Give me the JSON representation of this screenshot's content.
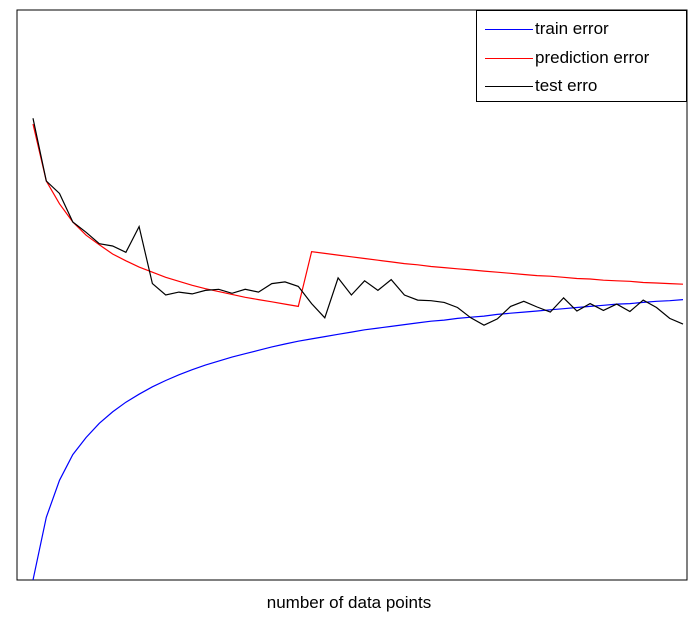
{
  "chart_data": {
    "type": "line",
    "title": "",
    "xlabel": "number of data points",
    "ylabel": "",
    "x_ticks": [],
    "y_ticks": [],
    "grid": false,
    "legend_position": "top-right",
    "xlim": [
      1,
      50
    ],
    "ylim": [
      0,
      1
    ],
    "x": [
      1,
      2,
      3,
      4,
      5,
      6,
      7,
      8,
      9,
      10,
      11,
      12,
      13,
      14,
      15,
      16,
      17,
      18,
      19,
      20,
      21,
      22,
      23,
      24,
      25,
      26,
      27,
      28,
      29,
      30,
      31,
      32,
      33,
      34,
      35,
      36,
      37,
      38,
      39,
      40,
      41,
      42,
      43,
      44,
      45,
      46,
      47,
      48,
      49,
      50
    ],
    "series": [
      {
        "name": "train error",
        "color": "#0000ff",
        "values": [
          0.0,
          0.11,
          0.175,
          0.22,
          0.25,
          0.275,
          0.295,
          0.312,
          0.326,
          0.339,
          0.35,
          0.36,
          0.369,
          0.377,
          0.384,
          0.391,
          0.397,
          0.403,
          0.409,
          0.414,
          0.419,
          0.423,
          0.427,
          0.431,
          0.435,
          0.439,
          0.442,
          0.445,
          0.448,
          0.451,
          0.454,
          0.456,
          0.459,
          0.461,
          0.463,
          0.466,
          0.468,
          0.47,
          0.472,
          0.474,
          0.476,
          0.478,
          0.48,
          0.482,
          0.484,
          0.485,
          0.487,
          0.489,
          0.49,
          0.492
        ]
      },
      {
        "name": "prediction error",
        "color": "#ff0000",
        "values": [
          0.8,
          0.7,
          0.66,
          0.628,
          0.605,
          0.588,
          0.572,
          0.56,
          0.549,
          0.54,
          0.531,
          0.524,
          0.517,
          0.511,
          0.506,
          0.501,
          0.496,
          0.492,
          0.488,
          0.484,
          0.48,
          0.576,
          0.573,
          0.57,
          0.567,
          0.564,
          0.561,
          0.558,
          0.555,
          0.553,
          0.55,
          0.548,
          0.546,
          0.544,
          0.542,
          0.54,
          0.538,
          0.536,
          0.534,
          0.533,
          0.531,
          0.529,
          0.528,
          0.526,
          0.525,
          0.524,
          0.522,
          0.521,
          0.52,
          0.519
        ]
      },
      {
        "name": "test erro",
        "color": "#000000",
        "values": [
          0.81,
          0.7,
          0.678,
          0.628,
          0.61,
          0.59,
          0.586,
          0.575,
          0.62,
          0.52,
          0.5,
          0.505,
          0.502,
          0.508,
          0.51,
          0.503,
          0.51,
          0.505,
          0.52,
          0.523,
          0.515,
          0.485,
          0.46,
          0.53,
          0.5,
          0.525,
          0.508,
          0.527,
          0.5,
          0.491,
          0.49,
          0.487,
          0.478,
          0.46,
          0.447,
          0.458,
          0.48,
          0.489,
          0.479,
          0.47,
          0.495,
          0.472,
          0.485,
          0.473,
          0.484,
          0.471,
          0.491,
          0.478,
          0.459,
          0.449
        ]
      }
    ]
  }
}
